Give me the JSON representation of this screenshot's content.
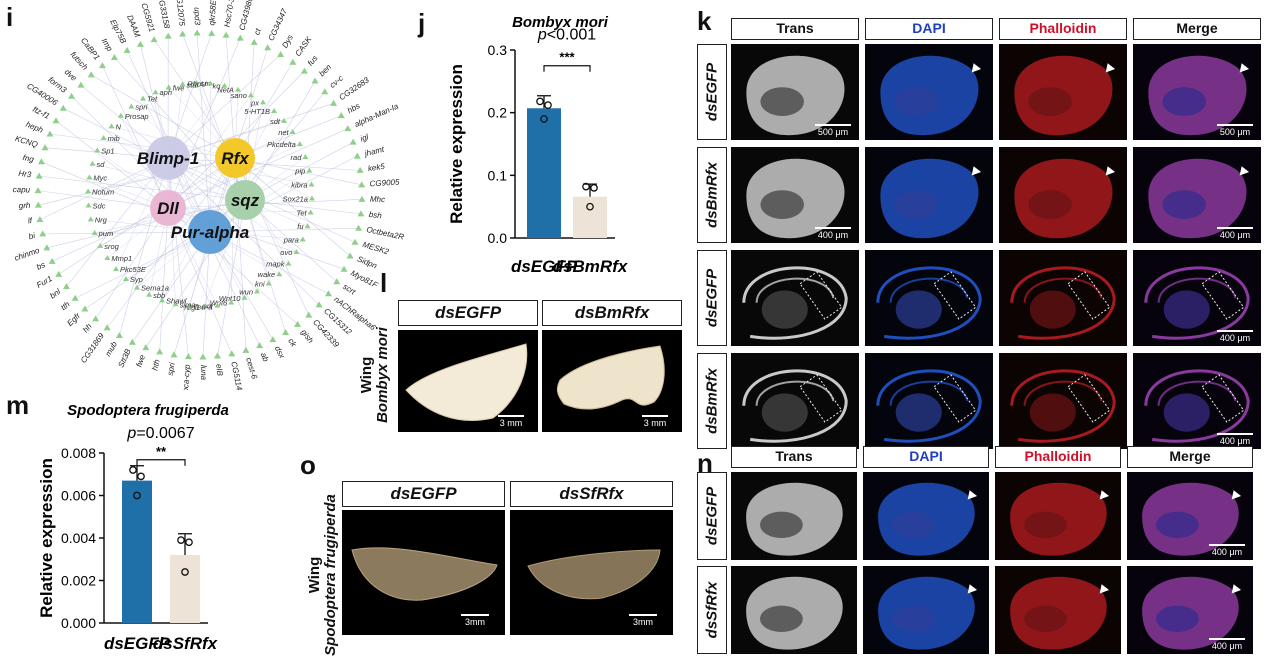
{
  "panels": {
    "i": "i",
    "j": "j",
    "k": "k",
    "l": "l",
    "m": "m",
    "n": "n",
    "o": "o"
  },
  "network": {
    "hubs": [
      "Blimp-1",
      "Rfx",
      "Dll",
      "sqz",
      "Pur-alpha"
    ],
    "hub_colors": [
      "#c9c9e6",
      "#f2c61f",
      "#e9b3d2",
      "#a3cfa6",
      "#5b9bd5"
    ],
    "genes_top": [
      "DAAM",
      "CG5921",
      "CG33158",
      "CG12075",
      "upd3",
      "qkr58E-3",
      "Hsc70-3",
      "CG43980",
      "ct",
      "CG34347",
      "Dys",
      "CASK",
      "fus",
      "ben",
      "cv-c",
      "CG32683",
      "hbs",
      "alpha-Man-Ia",
      "igl",
      "jhamt",
      "kek5",
      "CG9005",
      "Mhc",
      "bsh"
    ],
    "genes_right": [
      "Octbeta2R",
      "MESK2",
      "Sidpn",
      "Myo81F",
      "scrt",
      "nAChRalpha6",
      "CG15312",
      "CG42339",
      "gish",
      "ck",
      "dsx",
      "ab",
      "cest-6",
      "CG5114",
      "eIB",
      "luna",
      "Moca-cyp",
      "spri",
      "hth",
      "fwe",
      "Stt3B",
      "mub"
    ],
    "genes_bottom": [
      "CG31869",
      "hh",
      "Egfr",
      "tth",
      "bnl",
      "Fur1",
      "bs",
      "chinmo",
      "bi",
      "lf",
      "grh",
      "capu",
      "Hr3",
      "fng",
      "KCNQ",
      "heph",
      "ftz-f1",
      "CG40006",
      "form3",
      "dve",
      "futsch",
      "CaBP1",
      "Imp",
      "Elp75B"
    ],
    "genes_inner": [
      "stai",
      "sm",
      "RhoU",
      "ko",
      "NetA",
      "sano",
      "px",
      "5-HT1B",
      "sdt",
      "net",
      "Pkcdelta",
      "rad",
      "pip",
      "kibra",
      "Sox21a",
      "Tet",
      "fu",
      "para",
      "ovo",
      "mapk",
      "wake",
      "kni",
      "wun",
      "Wnt10",
      "Wnt6",
      "pnr",
      "Nlg1",
      "Ten-a",
      "sima",
      "Shawl",
      "sbb",
      "Sema1a",
      "Syp",
      "Pkc53E",
      "Mmp1",
      "srog",
      "pum",
      "Nrg",
      "Sdc",
      "Notum",
      "Myc",
      "sd",
      "Sp1",
      "mib",
      "N",
      "Prosap",
      "spri",
      "Tet",
      "aph",
      "fwe"
    ]
  },
  "panel_j": {
    "species": "Bombyx mori",
    "pvalue": "p<0.001",
    "stars": "***",
    "ylabel": "Relative expression",
    "xlabels": [
      "dsEGFP",
      "dsBmRfx"
    ]
  },
  "panel_m": {
    "species": "Spodoptera frugiperda",
    "pvalue": "p=0.0067",
    "stars": "**",
    "ylabel": "Relative expression",
    "xlabels": [
      "dsEGFP",
      "dsSfRfx"
    ]
  },
  "chart_data": [
    {
      "type": "bar",
      "title": "Bombyx mori",
      "categories": [
        "dsEGFP",
        "dsBmRfx"
      ],
      "values": [
        0.207,
        0.066
      ],
      "errors": [
        0.02,
        0.02
      ],
      "points": [
        [
          0.218,
          0.212,
          0.19
        ],
        [
          0.082,
          0.08,
          0.05
        ]
      ],
      "ylabel": "Relative expression",
      "yticks": [
        "0.0",
        "0.1",
        "0.2",
        "0.3"
      ],
      "ylim": [
        0,
        0.3
      ],
      "colors": [
        "#1f6fa8",
        "#ede3d6"
      ],
      "annotation": "p<0.001 ***"
    },
    {
      "type": "bar",
      "title": "Spodoptera frugiperda",
      "categories": [
        "dsEGFP",
        "dsSfRfx"
      ],
      "values": [
        0.0067,
        0.0032
      ],
      "errors": [
        0.0007,
        0.001
      ],
      "points": [
        [
          0.0072,
          0.0069,
          0.006
        ],
        [
          0.0039,
          0.0038,
          0.0024
        ]
      ],
      "ylabel": "Relative expression",
      "yticks": [
        "0.000",
        "0.002",
        "0.004",
        "0.006",
        "0.008"
      ],
      "ylim": [
        0,
        0.008
      ],
      "colors": [
        "#1f6fa8",
        "#ede3d6"
      ],
      "annotation": "p=0.0067 **"
    }
  ],
  "panel_k": {
    "headers": [
      "Trans",
      "DAPI",
      "Phalloidin",
      "Merge"
    ],
    "header_colors": [
      "#111111",
      "#1f3fbf",
      "#d0102a",
      "#111111"
    ],
    "rows": [
      "dsEGFP",
      "dsBmRfx",
      "dsEGFP",
      "dsBmRfx"
    ],
    "scales": [
      "500 μm",
      "400 μm",
      "400 μm",
      "400 μm"
    ]
  },
  "panel_n": {
    "headers": [
      "Trans",
      "DAPI",
      "Phalloidin",
      "Merge"
    ],
    "header_colors": [
      "#111111",
      "#1f3fbf",
      "#d0102a",
      "#111111"
    ],
    "rows": [
      "dsEGFP",
      "dsSfRfx"
    ],
    "scales": [
      "400 μm",
      "400 μm"
    ]
  },
  "panel_l": {
    "side": "Wing",
    "species": "Bombyx mori",
    "headers": [
      "dsEGFP",
      "dsBmRfx"
    ],
    "scale": "3 mm"
  },
  "panel_o": {
    "side": "Wing",
    "species": "Spodoptera frugiperda",
    "headers": [
      "dsEGFP",
      "dsSfRfx"
    ],
    "scale": "3mm"
  }
}
